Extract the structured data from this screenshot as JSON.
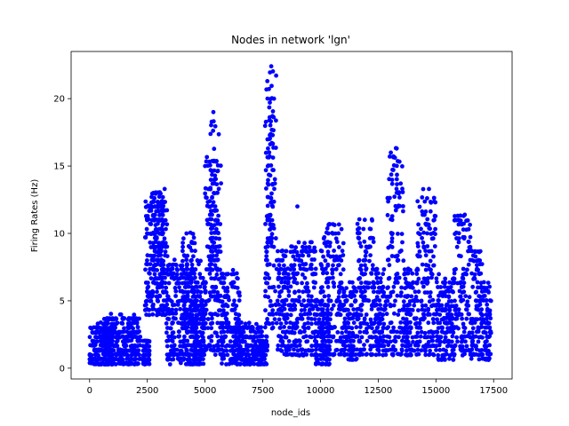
{
  "chart_data": {
    "type": "scatter",
    "title": "Nodes in network 'lgn'",
    "xlabel": "node_ids",
    "ylabel": "Firing Rates (Hz)",
    "xlim": [
      -800,
      18300
    ],
    "ylim": [
      -0.8,
      23.5
    ],
    "xticks": [
      0,
      2500,
      5000,
      7500,
      10000,
      12500,
      15000,
      17500
    ],
    "yticks": [
      0,
      5,
      10,
      15,
      20
    ],
    "grid": false,
    "legend": "none",
    "marker_color": "#0000ff",
    "series": [
      {
        "clusters": [
          {
            "x": [
              0,
              1000
            ],
            "y": [
              0.3,
              3.3
            ]
          },
          {
            "x": [
              500,
              2200
            ],
            "y": [
              0.3,
              4
            ]
          },
          {
            "x": [
              2300,
              2600
            ],
            "y": [
              0.3,
              2
            ]
          },
          {
            "x": [
              2400,
              3400
            ],
            "y": [
              4,
              12.5
            ]
          },
          {
            "x": [
              2600,
              3200
            ],
            "y": [
              6,
              13.3
            ]
          },
          {
            "x": [
              3300,
              5000
            ],
            "y": [
              0.3,
              8
            ]
          },
          {
            "x": [
              4000,
              4600
            ],
            "y": [
              3,
              10
            ]
          },
          {
            "x": [
              4500,
              5000
            ],
            "y": [
              0.3,
              6
            ]
          },
          {
            "x": [
              5000,
              5700
            ],
            "y": [
              1,
              16
            ]
          },
          {
            "x": [
              5200,
              5600
            ],
            "y": [
              5,
              19
            ]
          },
          {
            "x": [
              5700,
              6500
            ],
            "y": [
              0.3,
              7.3
            ]
          },
          {
            "x": [
              6200,
              7500
            ],
            "y": [
              0.3,
              3.3
            ]
          },
          {
            "x": [
              7400,
              7700
            ],
            "y": [
              0.3,
              2.5
            ]
          },
          {
            "x": [
              7600,
              8100
            ],
            "y": [
              3,
              22.4
            ]
          },
          {
            "x": [
              7700,
              8000
            ],
            "y": [
              9,
              19.5
            ]
          },
          {
            "x": [
              8100,
              9800
            ],
            "y": [
              1,
              9.3
            ]
          },
          {
            "x": [
              9800,
              10400
            ],
            "y": [
              0.3,
              5
            ]
          },
          {
            "x": [
              10000,
              11000
            ],
            "y": [
              1,
              10.7
            ]
          },
          {
            "x": [
              11000,
              11600
            ],
            "y": [
              0.7,
              6.5
            ]
          },
          {
            "x": [
              11600,
              12300
            ],
            "y": [
              1,
              11.3
            ]
          },
          {
            "x": [
              12300,
              12900
            ],
            "y": [
              1,
              7.5
            ]
          },
          {
            "x": [
              12900,
              13600
            ],
            "y": [
              1,
              16.3
            ]
          },
          {
            "x": [
              13600,
              14200
            ],
            "y": [
              1,
              7.5
            ]
          },
          {
            "x": [
              14200,
              15000
            ],
            "y": [
              1,
              13.3
            ]
          },
          {
            "x": [
              15000,
              15800
            ],
            "y": [
              0.7,
              7
            ]
          },
          {
            "x": [
              15800,
              16500
            ],
            "y": [
              1,
              11.3
            ]
          },
          {
            "x": [
              16500,
              17000
            ],
            "y": [
              0.7,
              8.8
            ]
          },
          {
            "x": [
              17000,
              17400
            ],
            "y": [
              0.5,
              6.5
            ]
          }
        ],
        "highlight_points": [
          {
            "x": 7870,
            "y": 22.4
          },
          {
            "x": 7700,
            "y": 21.3
          },
          {
            "x": 5360,
            "y": 19
          },
          {
            "x": 13300,
            "y": 16.3
          },
          {
            "x": 13000,
            "y": 15.7
          },
          {
            "x": 3250,
            "y": 13.3
          },
          {
            "x": 9000,
            "y": 12
          },
          {
            "x": 14700,
            "y": 13.3
          },
          {
            "x": 16200,
            "y": 11.3
          },
          {
            "x": 4200,
            "y": 10
          },
          {
            "x": 9800,
            "y": 0.3
          },
          {
            "x": 1000,
            "y": 0.3
          }
        ]
      }
    ]
  }
}
